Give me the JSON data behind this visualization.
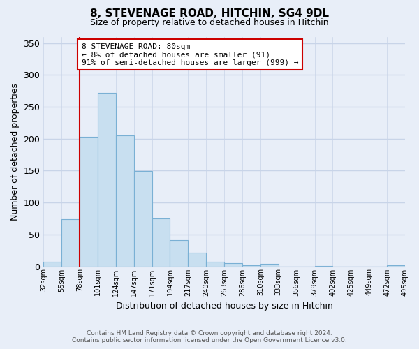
{
  "title": "8, STEVENAGE ROAD, HITCHIN, SG4 9DL",
  "subtitle": "Size of property relative to detached houses in Hitchin",
  "xlabel": "Distribution of detached houses by size in Hitchin",
  "ylabel": "Number of detached properties",
  "bin_labels": [
    "32sqm",
    "55sqm",
    "78sqm",
    "101sqm",
    "124sqm",
    "147sqm",
    "171sqm",
    "194sqm",
    "217sqm",
    "240sqm",
    "263sqm",
    "286sqm",
    "310sqm",
    "333sqm",
    "356sqm",
    "379sqm",
    "402sqm",
    "425sqm",
    "449sqm",
    "472sqm",
    "495sqm"
  ],
  "bar_heights": [
    7,
    74,
    203,
    272,
    205,
    149,
    75,
    41,
    21,
    7,
    5,
    2,
    4,
    0,
    0,
    1,
    0,
    0,
    0,
    2
  ],
  "bar_color": "#c8dff0",
  "bar_edge_color": "#7ab0d4",
  "property_line_color": "#cc0000",
  "ylim": [
    0,
    360
  ],
  "yticks": [
    0,
    50,
    100,
    150,
    200,
    250,
    300,
    350
  ],
  "annotation_line1": "8 STEVENAGE ROAD: 80sqm",
  "annotation_line2": "← 8% of detached houses are smaller (91)",
  "annotation_line3": "91% of semi-detached houses are larger (999) →",
  "annotation_box_color": "#ffffff",
  "annotation_box_edge": "#cc0000",
  "footer_line1": "Contains HM Land Registry data © Crown copyright and database right 2024.",
  "footer_line2": "Contains public sector information licensed under the Open Government Licence v3.0.",
  "background_color": "#e8eef8",
  "grid_color": "#c8d4e8"
}
